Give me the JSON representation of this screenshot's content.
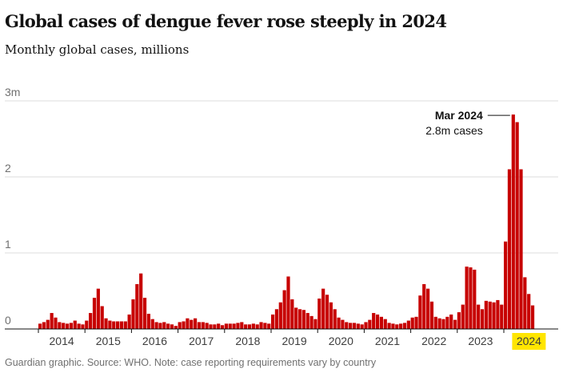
{
  "chart_data": {
    "type": "bar",
    "title": "Global cases of dengue fever rose steeply in 2024",
    "subtitle": "Monthly global cases, millions",
    "xlabel": "",
    "ylabel": "",
    "ylim": [
      0,
      3
    ],
    "y_ticks": [
      0,
      1,
      2,
      3
    ],
    "y_tick_labels": [
      "0",
      "1",
      "2",
      "3m"
    ],
    "years": [
      "2014",
      "2015",
      "2016",
      "2017",
      "2018",
      "2019",
      "2020",
      "2021",
      "2022",
      "2023",
      "2024"
    ],
    "highlight_year": "2024",
    "grid": true,
    "series": [
      {
        "name": "Monthly global cases (millions)",
        "start": "Jan 2014",
        "values": [
          0.07,
          0.09,
          0.12,
          0.21,
          0.15,
          0.09,
          0.08,
          0.07,
          0.08,
          0.11,
          0.07,
          0.06,
          0.11,
          0.21,
          0.41,
          0.53,
          0.3,
          0.14,
          0.11,
          0.1,
          0.1,
          0.1,
          0.1,
          0.19,
          0.39,
          0.59,
          0.73,
          0.41,
          0.2,
          0.13,
          0.09,
          0.08,
          0.09,
          0.07,
          0.06,
          0.04,
          0.09,
          0.1,
          0.14,
          0.12,
          0.14,
          0.09,
          0.09,
          0.08,
          0.06,
          0.06,
          0.07,
          0.05,
          0.07,
          0.07,
          0.07,
          0.08,
          0.09,
          0.06,
          0.06,
          0.07,
          0.06,
          0.09,
          0.08,
          0.07,
          0.19,
          0.26,
          0.35,
          0.51,
          0.69,
          0.39,
          0.28,
          0.26,
          0.25,
          0.21,
          0.17,
          0.13,
          0.4,
          0.53,
          0.45,
          0.35,
          0.26,
          0.15,
          0.12,
          0.09,
          0.08,
          0.08,
          0.07,
          0.06,
          0.09,
          0.12,
          0.21,
          0.19,
          0.16,
          0.13,
          0.08,
          0.07,
          0.06,
          0.07,
          0.08,
          0.11,
          0.15,
          0.16,
          0.44,
          0.59,
          0.53,
          0.36,
          0.16,
          0.14,
          0.13,
          0.16,
          0.19,
          0.12,
          0.22,
          0.32,
          0.82,
          0.81,
          0.78,
          0.32,
          0.26,
          0.37,
          0.36,
          0.35,
          0.38,
          0.32,
          1.15,
          2.1,
          2.82,
          2.72,
          2.1,
          0.68,
          0.46,
          0.31
        ]
      }
    ],
    "annotation": {
      "label": "Mar 2024",
      "text": "2.8m cases",
      "value": 2.82
    }
  },
  "footer": "Guardian graphic. Source: WHO. Note: case reporting requirements vary by country",
  "colors": {
    "bar": "#c70000",
    "grid": "#dcdcdc",
    "axis": "#121212",
    "highlight": "#ffe500"
  }
}
